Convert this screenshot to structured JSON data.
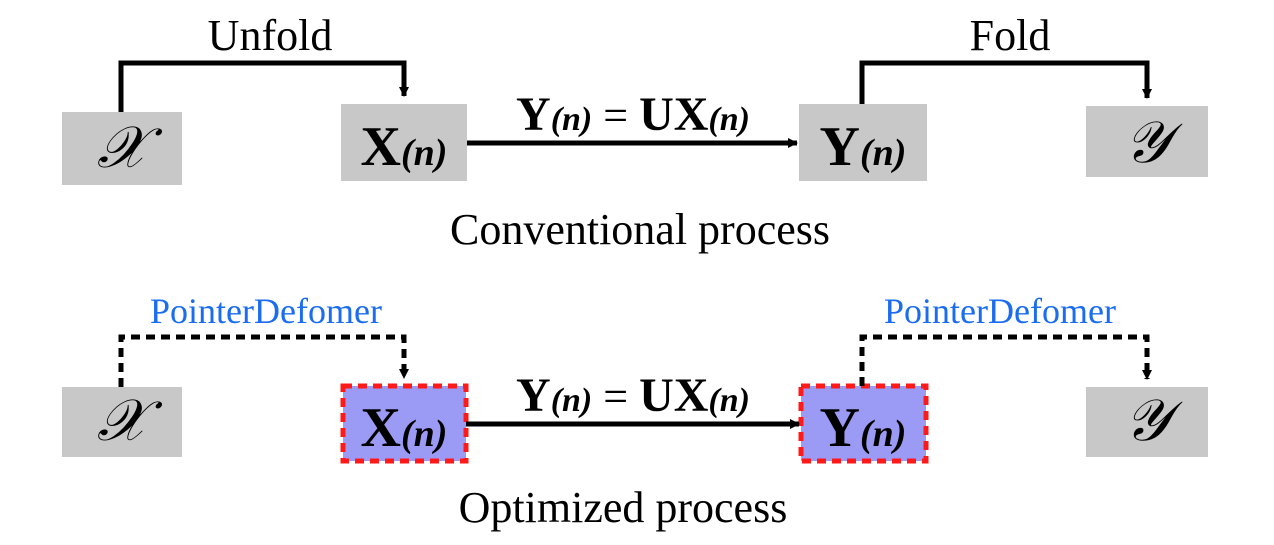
{
  "conventional": {
    "unfold_label": "Unfold",
    "fold_label": "Fold",
    "input_symbol": "𝒳",
    "output_symbol": "𝒴",
    "matrix_x": {
      "base": "X",
      "subscript": "(n)"
    },
    "matrix_y": {
      "base": "Y",
      "subscript": "(n)"
    },
    "equation": {
      "lhs": "Y",
      "lhs_sub": "(n)",
      "eq": " = ",
      "rhs_u": "U",
      "rhs_x": "X",
      "rhs_sub": "(n)"
    },
    "caption": "Conventional process"
  },
  "optimized": {
    "left_label": "PointerDefomer",
    "right_label": "PointerDefomer",
    "input_symbol": "𝒳",
    "output_symbol": "𝒴",
    "matrix_x": {
      "base": "X",
      "subscript": "(n)"
    },
    "matrix_y": {
      "base": "Y",
      "subscript": "(n)"
    },
    "equation": {
      "lhs": "Y",
      "lhs_sub": "(n)",
      "eq": " = ",
      "rhs_u": "U",
      "rhs_x": "X",
      "rhs_sub": "(n)"
    },
    "caption": "Optimized process"
  },
  "colors": {
    "box_gray": "#c8c8c8",
    "box_purple": "#9b9bf5",
    "dashed_red": "#ff1a1a",
    "label_blue": "#1a6cf0",
    "line": "#000000"
  }
}
